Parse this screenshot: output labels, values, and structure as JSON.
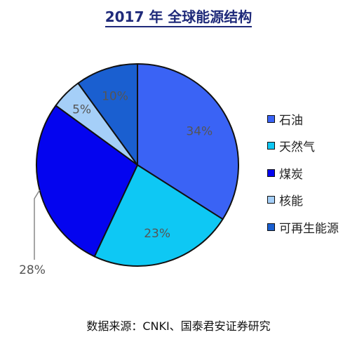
{
  "chart_data": {
    "type": "pie",
    "title": "2017 年  全球能源结构",
    "categories": [
      "石油",
      "天然气",
      "煤炭",
      "核能",
      "可再生能源"
    ],
    "values": [
      34,
      23,
      28,
      5,
      10
    ],
    "labels": [
      "34%",
      "23%",
      "28%",
      "5%",
      "10%"
    ],
    "colors": [
      "#3a63f5",
      "#0ec8f4",
      "#0404ef",
      "#a5cff8",
      "#1a5fd0"
    ],
    "legend_position": "right"
  },
  "source": "数据来源：CNKI、国泰君安证券研究"
}
